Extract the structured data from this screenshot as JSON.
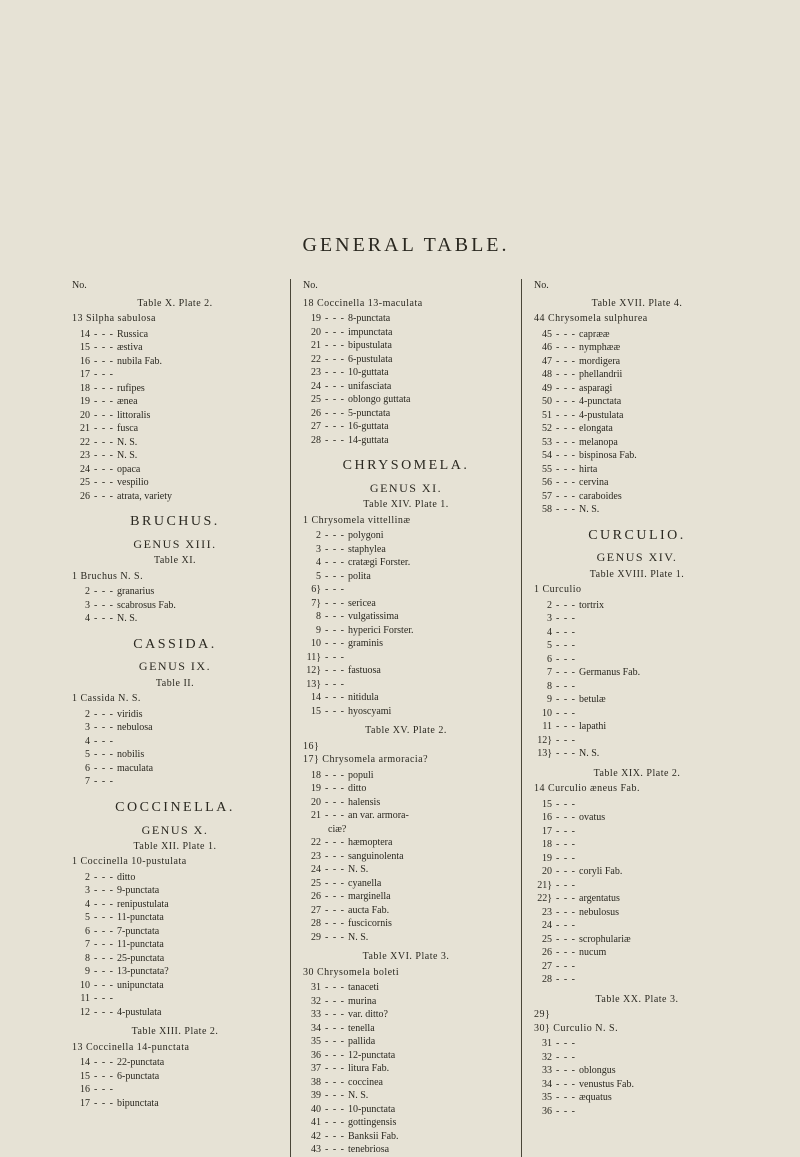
{
  "title": "GENERAL TABLE.",
  "no_label": "No.",
  "col1": {
    "table_x": "Table X.  Plate 2.",
    "silpha_head": "13 Silpha sabulosa",
    "silpha": [
      {
        "n": "14",
        "s": "Russica"
      },
      {
        "n": "15",
        "s": "æstiva"
      },
      {
        "n": "16",
        "s": "nubila          Fab."
      },
      {
        "n": "17",
        "s": ""
      },
      {
        "n": "18",
        "s": "rufipes"
      },
      {
        "n": "19",
        "s": "ænea"
      },
      {
        "n": "20",
        "s": "littoralis"
      },
      {
        "n": "21",
        "s": "fusca"
      },
      {
        "n": "22",
        "s": "N. S."
      },
      {
        "n": "23",
        "s": "N. S."
      },
      {
        "n": "24",
        "s": "opaca"
      },
      {
        "n": "25",
        "s": "vespilio"
      },
      {
        "n": "26",
        "s": "atrata, variety"
      }
    ],
    "bruchus_t": "BRUCHUS.",
    "bruchus_g": "GENUS XIII.",
    "table_xi": "Table XI.",
    "bruchus_head": "1 Bruchus N. S.",
    "bruchus": [
      {
        "n": "2",
        "s": "granarius"
      },
      {
        "n": "3",
        "s": "scabrosus   Fab."
      },
      {
        "n": "4",
        "s": "N. S."
      }
    ],
    "cassida_t": "CASSIDA.",
    "cassida_g": "GENUS IX.",
    "table_ii": "Table II.",
    "cassida_head": "1 Cassida N. S.",
    "cassida": [
      {
        "n": "2",
        "s": "viridis"
      },
      {
        "n": "3",
        "s": "nebulosa"
      },
      {
        "n": "4",
        "s": ""
      },
      {
        "n": "5",
        "s": "nobilis"
      },
      {
        "n": "6",
        "s": "maculata"
      },
      {
        "n": "7",
        "s": ""
      }
    ],
    "cocc_t": "COCCINELLA.",
    "cocc_g": "GENUS X.",
    "table_xii": "Table XII.  Plate 1.",
    "cocc1_head": "1 Coccinella 10-pustulata",
    "cocc1": [
      {
        "n": "2",
        "s": "ditto"
      },
      {
        "n": "3",
        "s": "9-punctata"
      },
      {
        "n": "4",
        "s": "renipustulata"
      },
      {
        "n": "5",
        "s": "11-punctata"
      },
      {
        "n": "6",
        "s": "7-punctata"
      },
      {
        "n": "7",
        "s": "11-punctata"
      },
      {
        "n": "8",
        "s": "25-punctata"
      },
      {
        "n": "9",
        "s": "13-punctata?"
      },
      {
        "n": "10",
        "s": "unipunctata"
      },
      {
        "n": "11",
        "s": ""
      },
      {
        "n": "12",
        "s": "4-pustulata"
      }
    ],
    "table_xiii": "Table XIII.  Plate 2.",
    "cocc2_head": "13 Coccinella 14-punctata",
    "cocc2": [
      {
        "n": "14",
        "s": "22-punctata"
      },
      {
        "n": "15",
        "s": "6-punctata"
      },
      {
        "n": "16",
        "s": ""
      },
      {
        "n": "17",
        "s": "bipunctata"
      }
    ]
  },
  "col2": {
    "cocc3_head": "18 Coccinella 13-maculata",
    "cocc3": [
      {
        "n": "19",
        "s": "8-punctata"
      },
      {
        "n": "20",
        "s": "impunctata"
      },
      {
        "n": "21",
        "s": "bipustulata"
      },
      {
        "n": "22",
        "s": "6-pustulata"
      },
      {
        "n": "23",
        "s": "10-guttata"
      },
      {
        "n": "24",
        "s": "unifasciata"
      },
      {
        "n": "25",
        "s": "oblongo guttata"
      },
      {
        "n": "26",
        "s": "5-punctata"
      },
      {
        "n": "27",
        "s": "16-guttata"
      },
      {
        "n": "28",
        "s": "14-guttata"
      }
    ],
    "chry_t": "CHRYSOMELA.",
    "chry_g": "GENUS XI.",
    "table_xiv": "Table XIV.  Plate 1.",
    "chry1_head": "1 Chrysomela vittellinæ",
    "chry1": [
      {
        "n": "2",
        "s": "polygoni"
      },
      {
        "n": "3",
        "s": "staphylea"
      },
      {
        "n": "4",
        "s": "cratægi Forster."
      },
      {
        "n": "5",
        "s": "polita"
      },
      {
        "n": "6}",
        "s": ""
      },
      {
        "n": "7}",
        "s": "sericea"
      },
      {
        "n": "8",
        "s": "vulgatissima"
      },
      {
        "n": "9",
        "s": "hyperici Forster."
      },
      {
        "n": "10",
        "s": "graminis"
      },
      {
        "n": "11}",
        "s": ""
      },
      {
        "n": "12}",
        "s": "fastuosa"
      },
      {
        "n": "13}",
        "s": ""
      },
      {
        "n": "14",
        "s": "nitidula"
      },
      {
        "n": "15",
        "s": "hyoscyami"
      }
    ],
    "table_xv": "Table XV.  Plate 2.",
    "chry2_head": "16}\n17} Chrysomela armoracia?",
    "chry2": [
      {
        "n": "18",
        "s": "populi"
      },
      {
        "n": "19",
        "s": "ditto"
      },
      {
        "n": "20",
        "s": "halensis"
      },
      {
        "n": "21",
        "s": "an var. armora-"
      },
      {
        "n": "",
        "s": "     ciæ?"
      },
      {
        "n": "22",
        "s": "hæmoptera"
      },
      {
        "n": "23",
        "s": "sanguinolenta"
      },
      {
        "n": "24",
        "s": "N. S."
      },
      {
        "n": "25",
        "s": "cyanella"
      },
      {
        "n": "26",
        "s": "marginella"
      },
      {
        "n": "27",
        "s": "aucta      Fab."
      },
      {
        "n": "28",
        "s": "fuscicornis"
      },
      {
        "n": "29",
        "s": "N. S."
      }
    ],
    "table_xvi": "Table XVI.  Plate 3.",
    "chry3_head": "30 Chrysomela boleti",
    "chry3": [
      {
        "n": "31",
        "s": "tanaceti"
      },
      {
        "n": "32",
        "s": "murina"
      },
      {
        "n": "33",
        "s": "var. ditto?"
      },
      {
        "n": "34",
        "s": "tenella"
      },
      {
        "n": "35",
        "s": "pallida"
      },
      {
        "n": "36",
        "s": "12-punctata"
      },
      {
        "n": "37",
        "s": "litura      Fab."
      },
      {
        "n": "38",
        "s": "coccinea"
      },
      {
        "n": "39",
        "s": "N. S."
      },
      {
        "n": "40",
        "s": "10-punctata"
      },
      {
        "n": "41",
        "s": "gottingensis"
      },
      {
        "n": "42",
        "s": "Banksii    Fab."
      },
      {
        "n": "43",
        "s": "tenebriosa"
      }
    ]
  },
  "col3": {
    "table_xvii": "Table XVII.  Plate 4.",
    "chry4_head": "44 Chrysomela sulphurea",
    "chry4": [
      {
        "n": "45",
        "s": "caprææ"
      },
      {
        "n": "46",
        "s": "nymphææ"
      },
      {
        "n": "47",
        "s": "mordigera"
      },
      {
        "n": "48",
        "s": "phellandrii"
      },
      {
        "n": "49",
        "s": "asparagi"
      },
      {
        "n": "50",
        "s": "4-punctata"
      },
      {
        "n": "51",
        "s": "4-pustulata"
      },
      {
        "n": "52",
        "s": "elongata"
      },
      {
        "n": "53",
        "s": "melanopa"
      },
      {
        "n": "54",
        "s": "bispinosa  Fab."
      },
      {
        "n": "55",
        "s": "hirta"
      },
      {
        "n": "56",
        "s": "cervina"
      },
      {
        "n": "57",
        "s": "caraboides"
      },
      {
        "n": "58",
        "s": "N. S."
      }
    ],
    "curc_t": "CURCULIO.",
    "curc_g": "GENUS XIV.",
    "table_xviii": "Table XVIII.  Plate 1.",
    "curc1_head": "1 Curculio",
    "curc1": [
      {
        "n": "2",
        "s": "tortrix"
      },
      {
        "n": "3",
        "s": ""
      },
      {
        "n": "4",
        "s": ""
      },
      {
        "n": "5",
        "s": ""
      },
      {
        "n": "6",
        "s": ""
      },
      {
        "n": "7",
        "s": "Germanus   Fab."
      },
      {
        "n": "8",
        "s": ""
      },
      {
        "n": "9",
        "s": "betulæ"
      },
      {
        "n": "10",
        "s": ""
      },
      {
        "n": "11",
        "s": "lapathi"
      },
      {
        "n": "12}",
        "s": ""
      },
      {
        "n": "13}",
        "s": "N. S."
      }
    ],
    "table_xix": "Table XIX.  Plate 2.",
    "curc2_head": "14 Curculio æneus        Fab.",
    "curc2": [
      {
        "n": "15",
        "s": ""
      },
      {
        "n": "16",
        "s": "ovatus"
      },
      {
        "n": "17",
        "s": ""
      },
      {
        "n": "18",
        "s": ""
      },
      {
        "n": "19",
        "s": ""
      },
      {
        "n": "20",
        "s": "coryli       Fab."
      },
      {
        "n": "21}",
        "s": ""
      },
      {
        "n": "22}",
        "s": "argentatus"
      },
      {
        "n": "23",
        "s": "nebulosus"
      },
      {
        "n": "24",
        "s": ""
      },
      {
        "n": "25",
        "s": "scrophulariæ"
      },
      {
        "n": "26",
        "s": "nucum"
      },
      {
        "n": "27",
        "s": ""
      },
      {
        "n": "28",
        "s": ""
      }
    ],
    "table_xx": "Table XX.  Plate 3.",
    "curc3_head": "29}\n30} Curculio N. S.",
    "curc3": [
      {
        "n": "31",
        "s": ""
      },
      {
        "n": "32",
        "s": ""
      },
      {
        "n": "33",
        "s": "oblongus"
      },
      {
        "n": "34",
        "s": "venustus   Fab."
      },
      {
        "n": "35",
        "s": "æquatus"
      },
      {
        "n": "36",
        "s": ""
      }
    ]
  }
}
